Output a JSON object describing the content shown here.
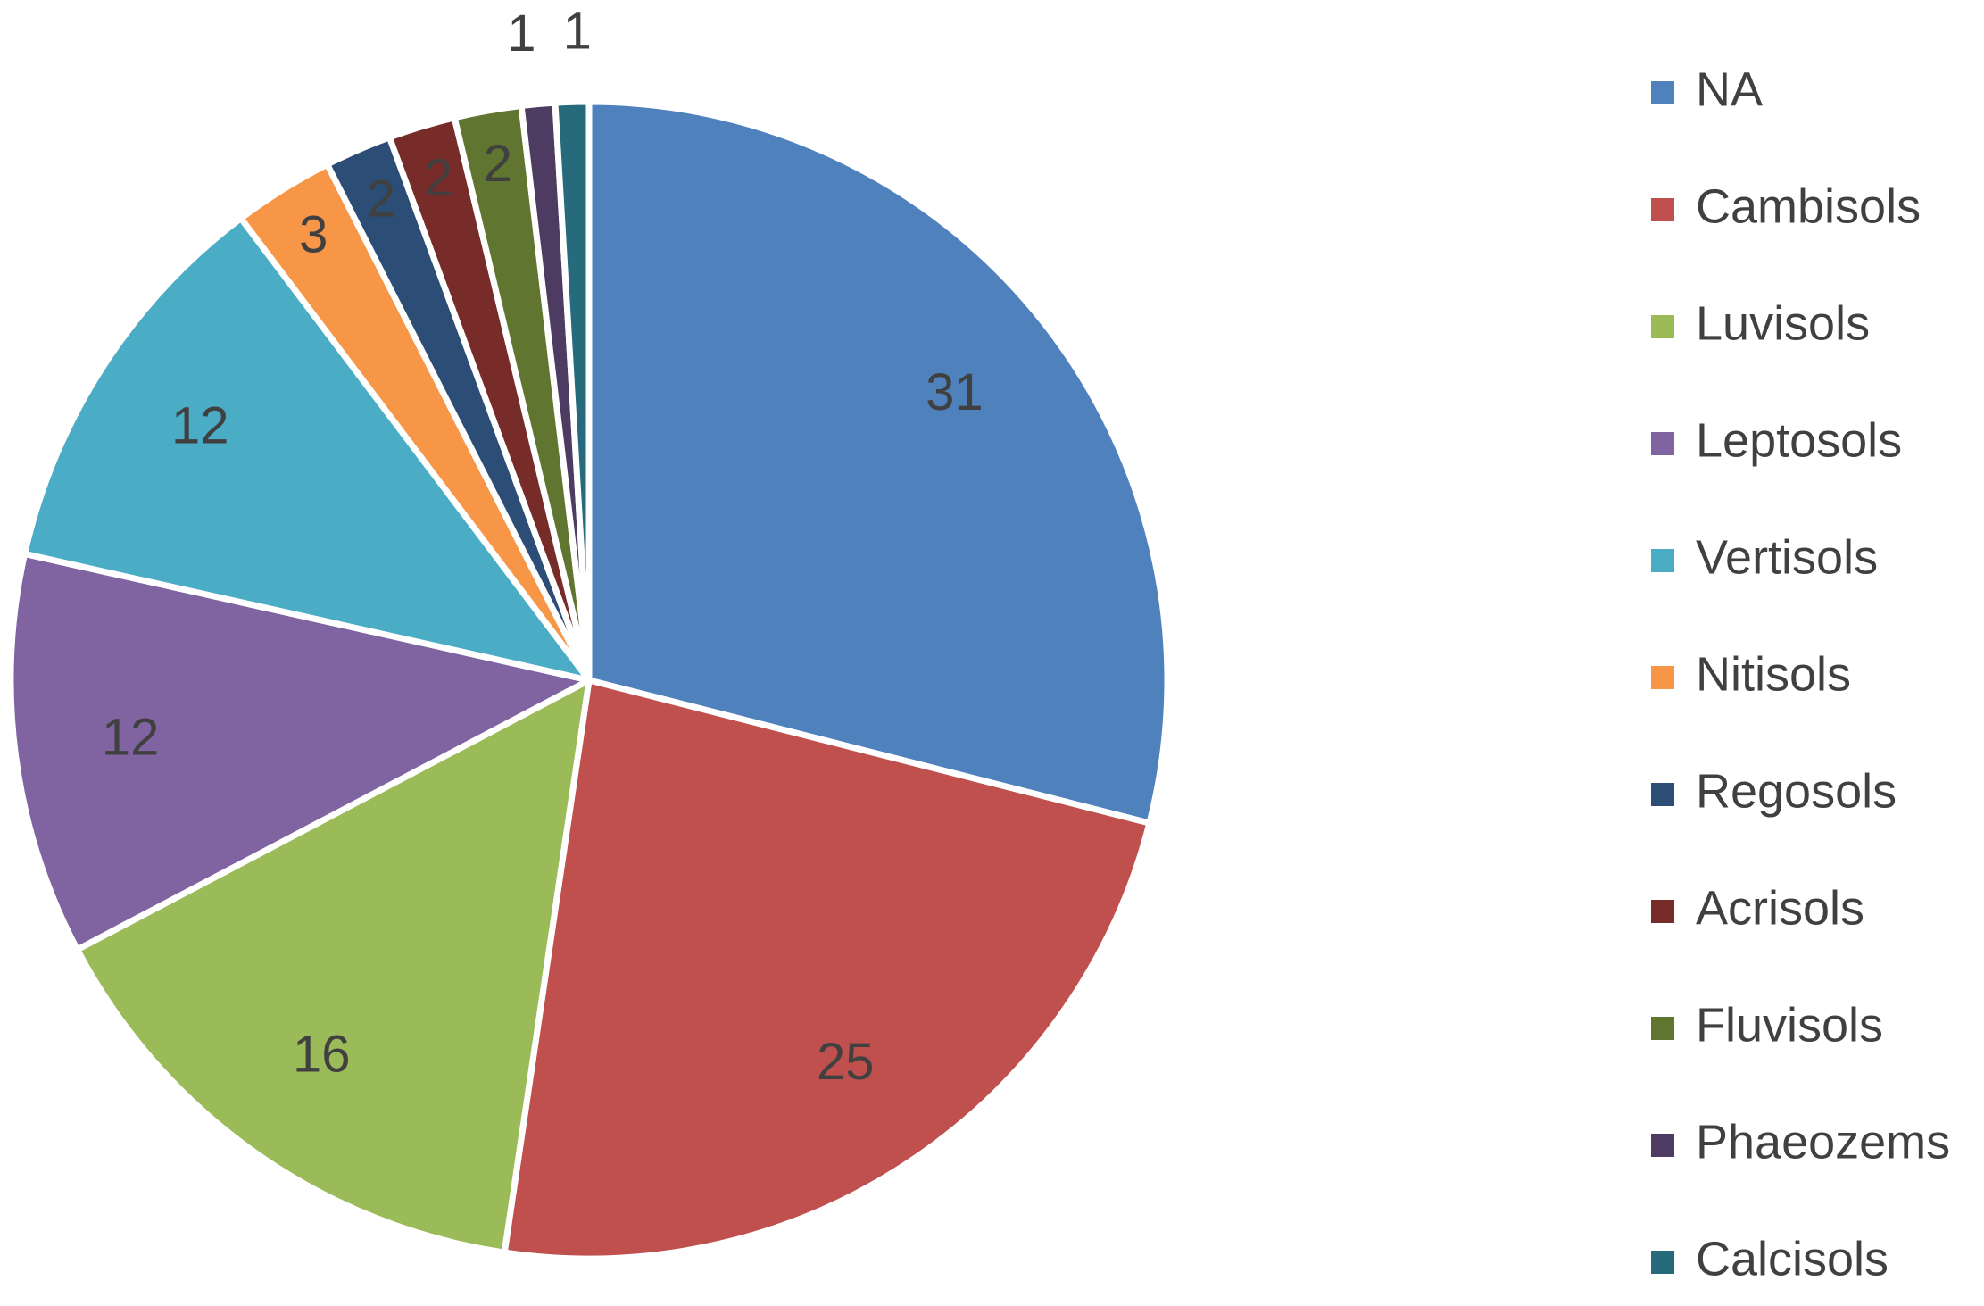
{
  "chart_data": {
    "type": "pie",
    "title": "",
    "legend_position": "right",
    "slices": [
      {
        "label": "NA",
        "value": 31,
        "color": "#4F81BD"
      },
      {
        "label": "Cambisols",
        "value": 25,
        "color": "#C0504D"
      },
      {
        "label": "Luvisols",
        "value": 16,
        "color": "#9BBB59"
      },
      {
        "label": "Leptosols",
        "value": 12,
        "color": "#8064A2"
      },
      {
        "label": "Vertisols",
        "value": 12,
        "color": "#4BACC6"
      },
      {
        "label": "Nitisols",
        "value": 3,
        "color": "#F79646"
      },
      {
        "label": "Regosols",
        "value": 2,
        "color": "#2C4D75"
      },
      {
        "label": "Acrisols",
        "value": 2,
        "color": "#772C2A"
      },
      {
        "label": "Fluvisols",
        "value": 2,
        "color": "#5F7530"
      },
      {
        "label": "Phaeozems",
        "value": 1,
        "color": "#4D3B62"
      },
      {
        "label": "Calcisols",
        "value": 1,
        "color": "#276A7C"
      }
    ]
  }
}
